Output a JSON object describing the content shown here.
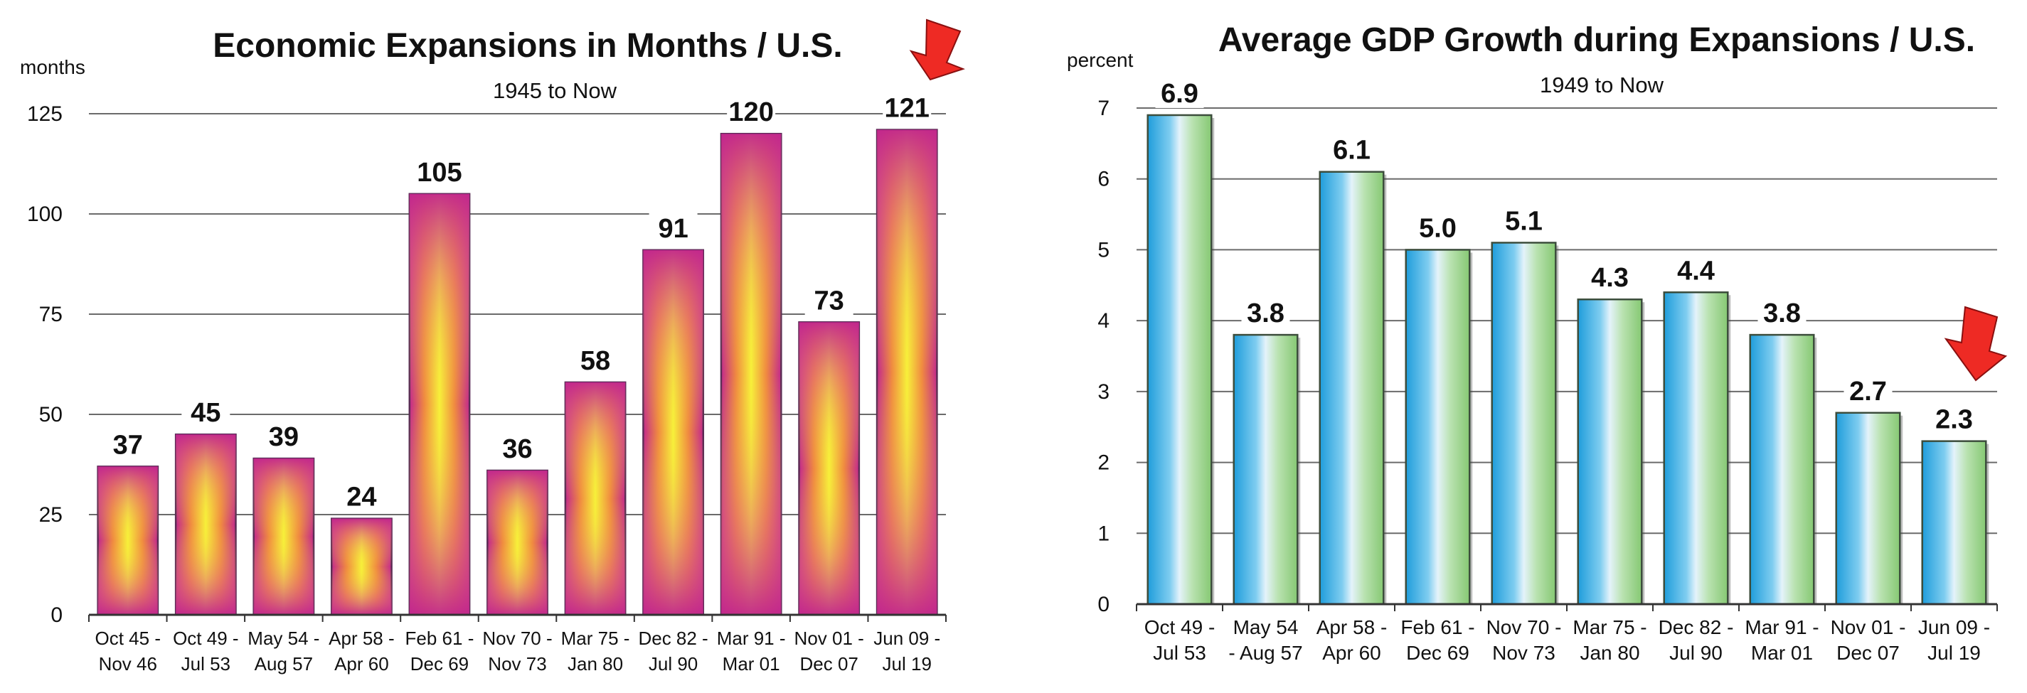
{
  "chart_data": [
    {
      "type": "bar",
      "title": "Economic Expansions in Months / U.S.",
      "subtitle": "1945 to Now",
      "ylabel": "months",
      "ylim": [
        0,
        125
      ],
      "yticks": [
        "0",
        "25",
        "50",
        "75",
        "100",
        "125"
      ],
      "categories": [
        [
          "Oct 45 -",
          "Nov 46"
        ],
        [
          "Oct 49 -",
          "Jul 53"
        ],
        [
          "May 54 -",
          "Aug 57"
        ],
        [
          "Apr 58 -",
          "Apr 60"
        ],
        [
          "Feb 61 -",
          "Dec 69"
        ],
        [
          "Nov 70 -",
          "Nov 73"
        ],
        [
          "Mar 75 -",
          "Jan 80"
        ],
        [
          "Dec 82 -",
          "Jul 90"
        ],
        [
          "Mar 91 -",
          "Mar 01"
        ],
        [
          "Nov 01 -",
          "Dec 07"
        ],
        [
          "Jun 09 -",
          "Jul 19"
        ]
      ],
      "values": [
        37,
        45,
        39,
        24,
        105,
        36,
        58,
        91,
        120,
        73,
        121
      ],
      "data_labels": [
        "37",
        "45",
        "39",
        "24",
        "105",
        "36",
        "58",
        "91",
        "120",
        "73",
        "121"
      ],
      "grid": true,
      "bar_style": "magenta-yellow gradient",
      "colors": {
        "edge": "#c2278d",
        "center": "#f7f03a",
        "mid": "#f4a020"
      },
      "annotation": "red arrow pointing at last bar"
    },
    {
      "type": "bar",
      "title": "Average GDP Growth during Expansions / U.S.",
      "subtitle": "1949 to Now",
      "ylabel": "percent",
      "ylim": [
        0,
        7
      ],
      "yticks": [
        "0",
        "1",
        "2",
        "3",
        "4",
        "5",
        "6",
        "7"
      ],
      "categories": [
        [
          "Oct 49 -",
          "Jul 53"
        ],
        [
          "May 54",
          "- Aug 57"
        ],
        [
          "Apr 58 -",
          "Apr 60"
        ],
        [
          "Feb 61 -",
          "Dec 69"
        ],
        [
          "Nov 70 -",
          "Nov 73"
        ],
        [
          "Mar 75 -",
          "Jan 80"
        ],
        [
          "Dec 82 -",
          "Jul 90"
        ],
        [
          "Mar 91 -",
          "Mar 01"
        ],
        [
          "Nov 01 -",
          "Dec 07"
        ],
        [
          "Jun 09 -",
          "Jul 19"
        ]
      ],
      "values": [
        6.9,
        3.8,
        6.1,
        5.0,
        5.1,
        4.3,
        4.4,
        3.8,
        2.7,
        2.3
      ],
      "data_labels": [
        "6.9",
        "3.8",
        "6.1",
        "5.0",
        "5.1",
        "4.3",
        "4.4",
        "3.8",
        "2.7",
        "2.3"
      ],
      "grid": true,
      "bar_style": "blue-green gradient",
      "colors": {
        "left": "#29a8e0",
        "mid": "#d9eefa",
        "right": "#8fcf7c"
      },
      "annotation": "red arrow pointing at last bar"
    }
  ]
}
